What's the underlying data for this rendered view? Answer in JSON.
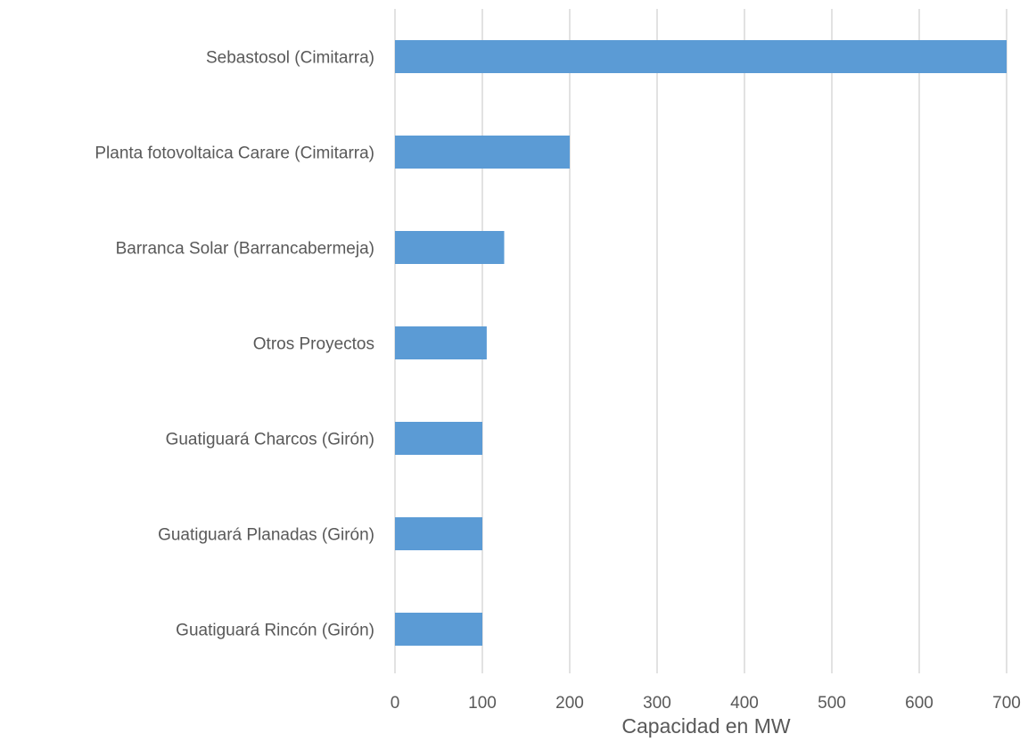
{
  "chart_data": {
    "type": "bar",
    "orientation": "horizontal",
    "categories": [
      "Sebastosol (Cimitarra)",
      "Planta fotovoltaica Carare (Cimitarra)",
      "Barranca Solar (Barrancabermeja)",
      "Otros Proyectos",
      "Guatiguará Charcos (Girón)",
      "Guatiguará Planadas (Girón)",
      "Guatiguará Rincón (Girón)"
    ],
    "values": [
      700,
      200,
      125,
      105,
      100,
      100,
      100
    ],
    "xlabel": "Capacidad en MW",
    "xlim": [
      0,
      700
    ],
    "xticks": [
      0,
      100,
      200,
      300,
      400,
      500,
      600,
      700
    ],
    "grid": "vertical",
    "bar_color": "#5b9bd5",
    "grid_color": "#d9d9d9",
    "text_color": "#595959"
  }
}
